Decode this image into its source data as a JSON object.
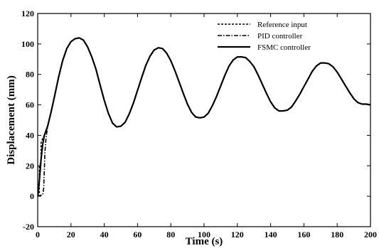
{
  "chart_data": {
    "type": "line",
    "xlabel": "Time (s)",
    "ylabel": "Displacement (mm)",
    "xlim": [
      0,
      200
    ],
    "ylim": [
      -20,
      120
    ],
    "x_ticks": [
      "0",
      "20",
      "40",
      "60",
      "80",
      "100",
      "120",
      "140",
      "160",
      "180",
      "200"
    ],
    "y_ticks": [
      "-20",
      "0",
      "20",
      "40",
      "60",
      "80",
      "100",
      "120"
    ],
    "grid": false,
    "legend_position": "top-right",
    "series": [
      {
        "name": "Reference input",
        "style": "dashed",
        "color": "#000000",
        "x": [
          0,
          1,
          1,
          2,
          2,
          3,
          4,
          6,
          8,
          10,
          12.5,
          15,
          17.5,
          20,
          22.5,
          25,
          27.5,
          30,
          32.5,
          35,
          37.5,
          40,
          42.5,
          45,
          47.5,
          50,
          52.5,
          55,
          57.5,
          60,
          62.5,
          65,
          67.5,
          70,
          72.5,
          75,
          77.5,
          80,
          82.5,
          85,
          87.5,
          90,
          92.5,
          95,
          97.5,
          100,
          102.5,
          105,
          107.5,
          110,
          112.5,
          115,
          117.5,
          120,
          122.5,
          125,
          127.5,
          130,
          132.5,
          135,
          137.5,
          140,
          142.5,
          145,
          147.5,
          150,
          152.5,
          155,
          157.5,
          160,
          162.5,
          165,
          167.5,
          170,
          172.5,
          175,
          177.5,
          180,
          182.5,
          185,
          187.5,
          190,
          192.5,
          195,
          197.5,
          200
        ],
        "y": [
          0,
          2,
          20,
          22,
          35,
          38,
          40,
          46,
          55,
          65,
          78,
          89,
          97,
          101.5,
          103.5,
          104,
          102.5,
          98,
          91.5,
          83.5,
          73,
          63,
          54.5,
          48,
          45.5,
          46,
          48.5,
          54,
          61,
          69.5,
          78,
          86,
          92,
          96,
          97.5,
          97,
          94,
          89,
          82.5,
          75,
          67.5,
          60.5,
          55,
          52,
          51.5,
          52,
          54.5,
          59.5,
          65.5,
          72.5,
          79.5,
          85.5,
          89.5,
          91.5,
          91.5,
          91,
          88.5,
          85,
          79.5,
          73.5,
          67.5,
          62,
          58,
          56,
          56,
          56.5,
          58.5,
          62.5,
          67,
          72,
          77,
          82,
          85.5,
          87.5,
          87.5,
          87,
          85,
          81.5,
          77,
          72.5,
          68,
          64,
          61.5,
          60.5,
          60.5,
          60
        ]
      },
      {
        "name": "PID controller",
        "style": "dashdot",
        "color": "#000000",
        "x": [
          0,
          3,
          3.6,
          4,
          4.4,
          5,
          5.5,
          6,
          8,
          10,
          12.5,
          15,
          17.5,
          20,
          22.5,
          25,
          27.5,
          30,
          32.5,
          35,
          37.5,
          40,
          42.5,
          45,
          47.5,
          50,
          52.5,
          55,
          57.5,
          60,
          62.5,
          65,
          67.5,
          70,
          72.5,
          75,
          77.5,
          80,
          82.5,
          85,
          87.5,
          90,
          92.5,
          95,
          97.5,
          100,
          102.5,
          105,
          107.5,
          110,
          112.5,
          115,
          117.5,
          120,
          122.5,
          125,
          127.5,
          130,
          132.5,
          135,
          137.5,
          140,
          142.5,
          145,
          147.5,
          150,
          152.5,
          155,
          157.5,
          160,
          162.5,
          165,
          167.5,
          170,
          172.5,
          175,
          177.5,
          180,
          182.5,
          185,
          187.5,
          190,
          192.5,
          195,
          197.5,
          200
        ],
        "y": [
          0,
          1,
          5,
          18,
          30,
          38,
          42,
          46,
          55,
          65,
          78,
          89,
          97,
          101.5,
          103.5,
          104,
          102.5,
          98,
          91.5,
          83.5,
          73,
          63,
          54.5,
          48,
          45.5,
          46,
          48.5,
          54,
          61,
          69.5,
          78,
          86,
          92,
          96,
          97.5,
          97,
          94,
          89,
          82.5,
          75,
          67.5,
          60.5,
          55,
          52,
          51.5,
          52,
          54.5,
          59.5,
          65.5,
          72.5,
          79.5,
          85.5,
          89.5,
          91.5,
          91.5,
          91,
          88.5,
          85,
          79.5,
          73.5,
          67.5,
          62,
          58,
          56,
          56,
          56.5,
          58.5,
          62.5,
          67,
          72,
          77,
          82,
          85.5,
          87.5,
          87.5,
          87,
          85,
          81.5,
          77,
          72.5,
          68,
          64,
          61.5,
          60.5,
          60.5,
          60
        ]
      },
      {
        "name": "FSMC controller",
        "style": "solid",
        "color": "#000000",
        "x": [
          0,
          1,
          2,
          3,
          4,
          6,
          8,
          10,
          12.5,
          15,
          17.5,
          20,
          22.5,
          25,
          27.5,
          30,
          32.5,
          35,
          37.5,
          40,
          42.5,
          45,
          47.5,
          50,
          52.5,
          55,
          57.5,
          60,
          62.5,
          65,
          67.5,
          70,
          72.5,
          75,
          77.5,
          80,
          82.5,
          85,
          87.5,
          90,
          92.5,
          95,
          97.5,
          100,
          102.5,
          105,
          107.5,
          110,
          112.5,
          115,
          117.5,
          120,
          122.5,
          125,
          127.5,
          130,
          132.5,
          135,
          137.5,
          140,
          142.5,
          145,
          147.5,
          150,
          152.5,
          155,
          157.5,
          160,
          162.5,
          165,
          167.5,
          170,
          172.5,
          175,
          177.5,
          180,
          182.5,
          185,
          187.5,
          190,
          192.5,
          195,
          197.5,
          200
        ],
        "y": [
          0,
          10,
          24,
          34,
          40,
          46,
          55,
          65,
          78,
          89,
          97,
          101.5,
          103.5,
          104,
          102.5,
          98,
          91.5,
          83.5,
          73,
          63,
          54.5,
          48,
          45.5,
          46,
          48.5,
          54,
          61,
          69.5,
          78,
          86,
          92,
          96,
          97.5,
          97,
          94,
          89,
          82.5,
          75,
          67.5,
          60.5,
          55,
          52,
          51.5,
          52,
          54.5,
          59.5,
          65.5,
          72.5,
          79.5,
          85.5,
          89.5,
          91.5,
          91.5,
          91,
          88.5,
          85,
          79.5,
          73.5,
          67.5,
          62,
          58,
          56,
          56,
          56.5,
          58.5,
          62.5,
          67,
          72,
          77,
          82,
          85.5,
          87.5,
          87.5,
          87,
          85,
          81.5,
          77,
          72.5,
          68,
          64,
          61.5,
          60.5,
          60.5,
          60
        ]
      }
    ]
  }
}
